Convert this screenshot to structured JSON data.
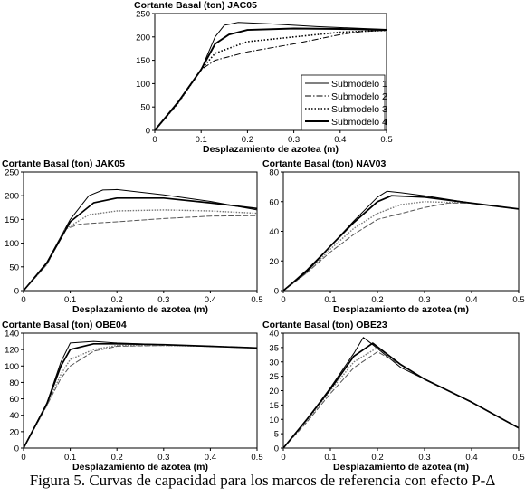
{
  "caption": "Figura 5. Curvas de capacidad para los marcos de referencia con efecto P-Δ",
  "chart_data": [
    {
      "type": "line",
      "title": "Cortante Basal (ton) JAC05",
      "xlabel": "Desplazamiento de azotea (m)",
      "ylabel": "",
      "xlim": [
        0,
        0.5
      ],
      "ylim": [
        0,
        250
      ],
      "xticks": [
        "0",
        "0.1",
        "0.2",
        "0.3",
        "0.4",
        "0.5"
      ],
      "yticks": [
        "0",
        "50",
        "100",
        "150",
        "200",
        "250"
      ],
      "legend_position": "inside-right",
      "series": [
        {
          "name": "Submodelo 1",
          "points": [
            [
              0,
              0
            ],
            [
              0.05,
              60
            ],
            [
              0.1,
              130
            ],
            [
              0.13,
              200
            ],
            [
              0.15,
              225
            ],
            [
              0.18,
              231
            ],
            [
              0.25,
              228
            ],
            [
              0.35,
              222
            ],
            [
              0.45,
              218
            ],
            [
              0.5,
              216
            ]
          ]
        },
        {
          "name": "Submodelo 2",
          "points": [
            [
              0,
              0
            ],
            [
              0.05,
              58
            ],
            [
              0.1,
              130
            ],
            [
              0.13,
              150
            ],
            [
              0.2,
              168
            ],
            [
              0.3,
              185
            ],
            [
              0.4,
              205
            ],
            [
              0.45,
              212
            ],
            [
              0.5,
              214
            ]
          ]
        },
        {
          "name": "Submodelo 3",
          "points": [
            [
              0,
              0
            ],
            [
              0.05,
              58
            ],
            [
              0.1,
              130
            ],
            [
              0.13,
              165
            ],
            [
              0.2,
              190
            ],
            [
              0.3,
              200
            ],
            [
              0.4,
              210
            ],
            [
              0.5,
              214
            ]
          ]
        },
        {
          "name": "Submodelo 4",
          "points": [
            [
              0,
              0
            ],
            [
              0.05,
              60
            ],
            [
              0.1,
              130
            ],
            [
              0.13,
              185
            ],
            [
              0.16,
              205
            ],
            [
              0.2,
              215
            ],
            [
              0.3,
              218
            ],
            [
              0.4,
              217
            ],
            [
              0.5,
              215
            ]
          ]
        }
      ]
    },
    {
      "type": "line",
      "title": "Cortante Basal (ton) JAK05",
      "xlabel": "Desplazamiento de azotea (m)",
      "ylabel": "",
      "xlim": [
        0,
        0.5
      ],
      "ylim": [
        0,
        250
      ],
      "xticks": [
        "0",
        "0.1",
        "0.2",
        "0.3",
        "0.4",
        "0.5"
      ],
      "yticks": [
        "0",
        "50",
        "100",
        "150",
        "200",
        "250"
      ],
      "series": [
        {
          "points": [
            [
              0,
              0
            ],
            [
              0.05,
              60
            ],
            [
              0.1,
              150
            ],
            [
              0.14,
              200
            ],
            [
              0.17,
              212
            ],
            [
              0.2,
              213
            ],
            [
              0.3,
              202
            ],
            [
              0.4,
              188
            ],
            [
              0.5,
              170
            ]
          ]
        },
        {
          "points": [
            [
              0,
              0
            ],
            [
              0.05,
              55
            ],
            [
              0.09,
              130
            ],
            [
              0.12,
              140
            ],
            [
              0.2,
              145
            ],
            [
              0.3,
              152
            ],
            [
              0.4,
              157
            ],
            [
              0.5,
              158
            ]
          ]
        },
        {
          "points": [
            [
              0,
              0
            ],
            [
              0.05,
              55
            ],
            [
              0.09,
              130
            ],
            [
              0.14,
              160
            ],
            [
              0.2,
              168
            ],
            [
              0.3,
              170
            ],
            [
              0.4,
              168
            ],
            [
              0.5,
              163
            ]
          ]
        },
        {
          "points": [
            [
              0,
              0
            ],
            [
              0.05,
              58
            ],
            [
              0.1,
              145
            ],
            [
              0.15,
              185
            ],
            [
              0.2,
              195
            ],
            [
              0.3,
              195
            ],
            [
              0.4,
              185
            ],
            [
              0.5,
              173
            ]
          ]
        }
      ]
    },
    {
      "type": "line",
      "title": "Cortante Basal (ton) NAV03",
      "xlabel": "Desplazamiento de azotea (m)",
      "ylabel": "",
      "xlim": [
        0,
        0.5
      ],
      "ylim": [
        0,
        80
      ],
      "xticks": [
        "0",
        "0.1",
        "0.2",
        "0.3",
        "0.4",
        "0.5"
      ],
      "yticks": [
        "0",
        "20",
        "40",
        "60",
        "80"
      ],
      "series": [
        {
          "points": [
            [
              0,
              0
            ],
            [
              0.05,
              14
            ],
            [
              0.1,
              30
            ],
            [
              0.15,
              47
            ],
            [
              0.2,
              63
            ],
            [
              0.22,
              67
            ],
            [
              0.25,
              66
            ],
            [
              0.3,
              64
            ],
            [
              0.4,
              59
            ],
            [
              0.5,
              55
            ]
          ]
        },
        {
          "points": [
            [
              0,
              0
            ],
            [
              0.05,
              12
            ],
            [
              0.1,
              26
            ],
            [
              0.15,
              38
            ],
            [
              0.2,
              48
            ],
            [
              0.3,
              56
            ],
            [
              0.35,
              59
            ],
            [
              0.4,
              59
            ],
            [
              0.5,
              55
            ]
          ]
        },
        {
          "points": [
            [
              0,
              0
            ],
            [
              0.05,
              12
            ],
            [
              0.1,
              28
            ],
            [
              0.15,
              42
            ],
            [
              0.2,
              52
            ],
            [
              0.25,
              58
            ],
            [
              0.3,
              60
            ],
            [
              0.4,
              59
            ],
            [
              0.5,
              55
            ]
          ]
        },
        {
          "points": [
            [
              0,
              0
            ],
            [
              0.05,
              13
            ],
            [
              0.1,
              30
            ],
            [
              0.15,
              46
            ],
            [
              0.2,
              60
            ],
            [
              0.23,
              64
            ],
            [
              0.3,
              63
            ],
            [
              0.4,
              59
            ],
            [
              0.5,
              55
            ]
          ]
        }
      ]
    },
    {
      "type": "line",
      "title": "Cortante Basal (ton) OBE04",
      "xlabel": "Desplazamiento de azotea (m)",
      "ylabel": "",
      "xlim": [
        0,
        0.5
      ],
      "ylim": [
        0,
        140
      ],
      "xticks": [
        "0",
        "0.1",
        "0.2",
        "0.3",
        "0.4",
        "0.5"
      ],
      "yticks": [
        "0",
        "20",
        "40",
        "60",
        "80",
        "100",
        "120",
        "140"
      ],
      "series": [
        {
          "points": [
            [
              0,
              0
            ],
            [
              0.05,
              55
            ],
            [
              0.08,
              105
            ],
            [
              0.1,
              128
            ],
            [
              0.15,
              130
            ],
            [
              0.2,
              128
            ],
            [
              0.3,
              126
            ],
            [
              0.4,
              124
            ],
            [
              0.5,
              122
            ]
          ]
        },
        {
          "points": [
            [
              0,
              0
            ],
            [
              0.05,
              52
            ],
            [
              0.08,
              85
            ],
            [
              0.1,
              100
            ],
            [
              0.15,
              118
            ],
            [
              0.2,
              124
            ],
            [
              0.3,
              125
            ],
            [
              0.4,
              124
            ],
            [
              0.5,
              122
            ]
          ]
        },
        {
          "points": [
            [
              0,
              0
            ],
            [
              0.05,
              52
            ],
            [
              0.08,
              90
            ],
            [
              0.1,
              108
            ],
            [
              0.15,
              120
            ],
            [
              0.2,
              125
            ],
            [
              0.3,
              125
            ],
            [
              0.4,
              124
            ],
            [
              0.5,
              122
            ]
          ]
        },
        {
          "points": [
            [
              0,
              0
            ],
            [
              0.05,
              54
            ],
            [
              0.08,
              100
            ],
            [
              0.1,
              120
            ],
            [
              0.15,
              127
            ],
            [
              0.2,
              127
            ],
            [
              0.3,
              126
            ],
            [
              0.4,
              124
            ],
            [
              0.5,
              122
            ]
          ]
        }
      ]
    },
    {
      "type": "line",
      "title": "Cortante Basal (ton) OBE23",
      "xlabel": "Desplazamiento de azotea (m)",
      "ylabel": "",
      "xlim": [
        0,
        0.5
      ],
      "ylim": [
        0,
        40
      ],
      "xticks": [
        "0",
        "0.1",
        "0.2",
        "0.3",
        "0.4",
        "0.5"
      ],
      "yticks": [
        "0",
        "5",
        "10",
        "15",
        "20",
        "25",
        "30",
        "35",
        "40"
      ],
      "series": [
        {
          "points": [
            [
              0,
              0
            ],
            [
              0.05,
              10
            ],
            [
              0.1,
              21
            ],
            [
              0.15,
              33
            ],
            [
              0.17,
              38.5
            ],
            [
              0.19,
              36
            ],
            [
              0.25,
              28
            ],
            [
              0.3,
              24
            ],
            [
              0.4,
              16
            ],
            [
              0.5,
              7
            ]
          ]
        },
        {
          "points": [
            [
              0,
              0
            ],
            [
              0.05,
              9
            ],
            [
              0.1,
              19
            ],
            [
              0.15,
              28
            ],
            [
              0.2,
              33.5
            ],
            [
              0.25,
              29
            ],
            [
              0.3,
              24
            ],
            [
              0.4,
              16
            ],
            [
              0.5,
              7
            ]
          ]
        },
        {
          "points": [
            [
              0,
              0
            ],
            [
              0.05,
              9.5
            ],
            [
              0.1,
              20
            ],
            [
              0.15,
              30
            ],
            [
              0.2,
              35
            ],
            [
              0.25,
              29
            ],
            [
              0.3,
              24
            ],
            [
              0.4,
              16
            ],
            [
              0.5,
              7
            ]
          ]
        },
        {
          "points": [
            [
              0,
              0
            ],
            [
              0.05,
              10
            ],
            [
              0.1,
              20.5
            ],
            [
              0.15,
              32
            ],
            [
              0.19,
              36.5
            ],
            [
              0.25,
              29
            ],
            [
              0.3,
              24
            ],
            [
              0.4,
              16
            ],
            [
              0.5,
              7
            ]
          ]
        }
      ]
    }
  ]
}
